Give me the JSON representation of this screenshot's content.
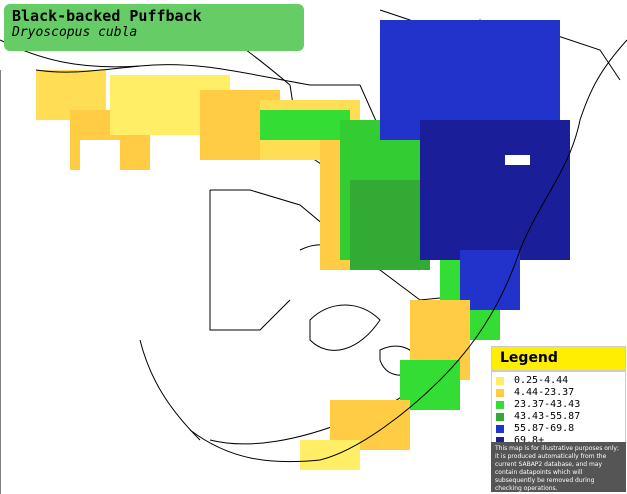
{
  "title": {
    "common_name": "Black-backed Puffback",
    "scientific_name": "Dryoscopus cubla"
  },
  "legend": {
    "heading": "Legend",
    "items": [
      {
        "label": "0.25-4.44",
        "color": "#ffee66"
      },
      {
        "label": "4.44-23.37",
        "color": "#ffcc44"
      },
      {
        "label": "23.37-43.43",
        "color": "#33dd33"
      },
      {
        "label": "43.43-55.87",
        "color": "#33aa33"
      },
      {
        "label": "55.87-69.8",
        "color": "#2233cc"
      },
      {
        "label": "69.8+",
        "color": "#1a1f99"
      }
    ],
    "note": "This map is for illustrative purposes only; it is produced automatically from the current SABAP2 database, and may contain datapoints which will subsequently be removed during checking operations."
  },
  "map": {
    "border_color": "#000000",
    "land_color": "#ffffff",
    "ocean_color": "#ffffff"
  }
}
